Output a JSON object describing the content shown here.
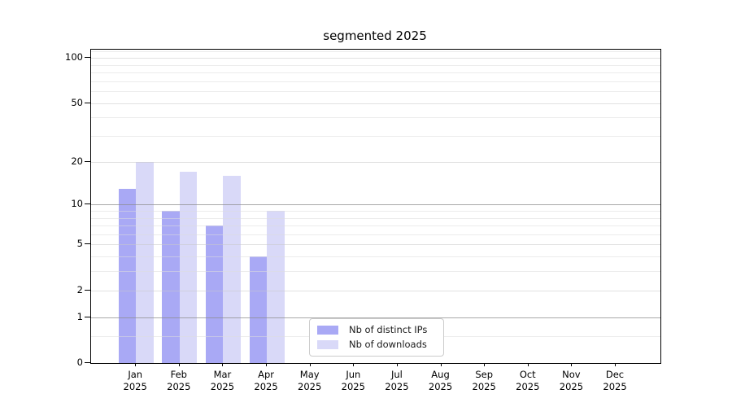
{
  "chart_data": {
    "type": "bar",
    "title": "segmented 2025",
    "categories": [
      "Jan",
      "Feb",
      "Mar",
      "Apr",
      "May",
      "Jun",
      "Jul",
      "Aug",
      "Sep",
      "Oct",
      "Nov",
      "Dec"
    ],
    "x_sublabel_year": "2025",
    "series": [
      {
        "name": "Nb of distinct IPs",
        "color": "#a9a9f5",
        "values": [
          13,
          9,
          7,
          4,
          0,
          0,
          0,
          0,
          0,
          0,
          0,
          0
        ]
      },
      {
        "name": "Nb of downloads",
        "color": "#d9d9f8",
        "values": [
          20,
          17,
          16,
          9,
          0,
          0,
          0,
          0,
          0,
          0,
          0,
          0
        ]
      }
    ],
    "y_scale": "log10(value+1)",
    "y_ticks": [
      0,
      1,
      2,
      5,
      10,
      20,
      50,
      100
    ],
    "y_gridlines_minor": [
      0.5,
      3,
      4,
      6,
      7,
      8,
      9,
      30,
      40,
      60,
      70,
      80,
      90,
      110
    ],
    "y_gridlines_emphasized": [
      1,
      10
    ],
    "ylim": [
      0,
      113
    ],
    "grid": true,
    "legend_position": "lower center"
  },
  "colors": {
    "bar_distinct_ips": "#a9a9f5",
    "bar_downloads": "#d9d9f8",
    "grid_minor": "rgba(220,220,220,0.55)",
    "grid_major": "rgba(200,200,200,0.55)",
    "grid_emphasized": "rgba(140,140,140,0.75)",
    "axis_frame": "#000000",
    "text": "#1a1a1a",
    "legend_border": "#cccccc",
    "background": "#ffffff"
  }
}
